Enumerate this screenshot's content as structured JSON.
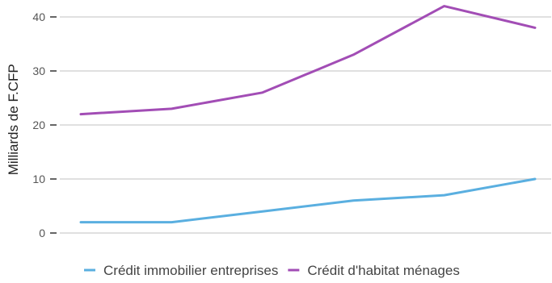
{
  "chart_data": {
    "type": "line",
    "title": "",
    "xlabel": "",
    "ylabel": "Milliards de F.CFP",
    "ylim": [
      0,
      42
    ],
    "yticks": [
      0,
      10,
      20,
      30,
      40
    ],
    "x": [
      1,
      2,
      3,
      4,
      5,
      6
    ],
    "grid": "horizontal",
    "legend": "bottom",
    "series": [
      {
        "name": "Crédit immobilier entreprises",
        "color": "#5aafe0",
        "values": [
          2,
          2,
          4,
          6,
          7,
          10
        ]
      },
      {
        "name": "Crédit d'habitat ménages",
        "color": "#a24db5",
        "values": [
          22,
          23,
          26,
          33,
          42,
          38
        ]
      }
    ]
  }
}
